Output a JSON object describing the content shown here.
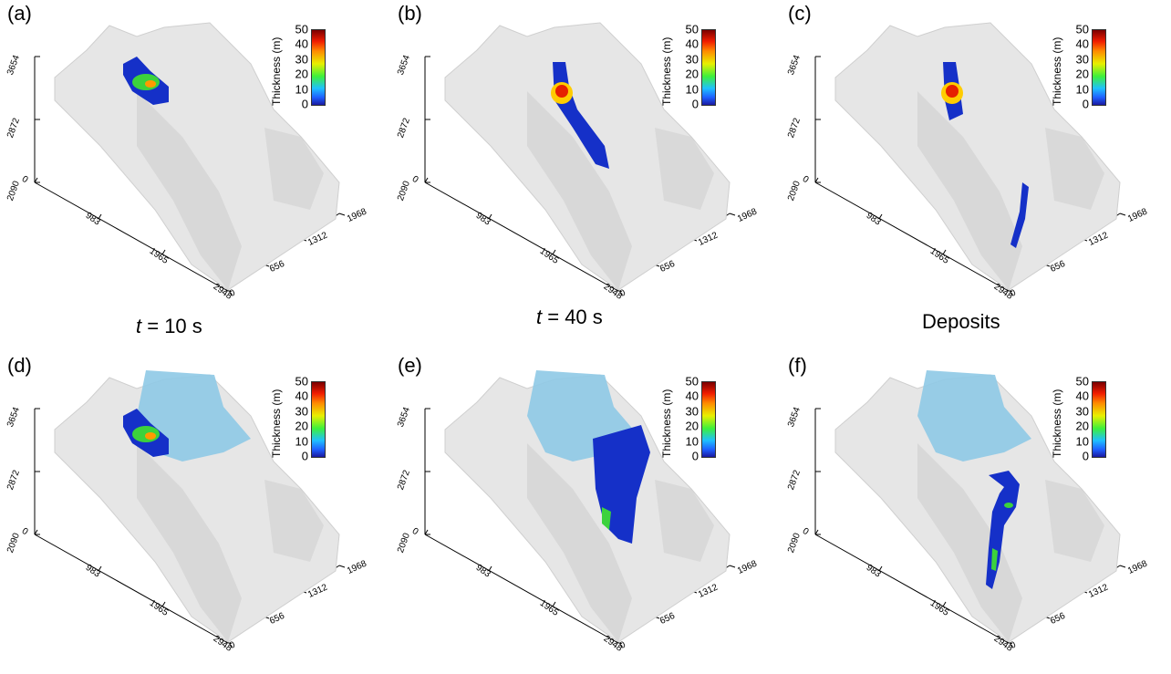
{
  "panels": [
    {
      "label": "(a)",
      "lake": false,
      "flow": "start"
    },
    {
      "label": "(b)",
      "lake": false,
      "flow": "mid"
    },
    {
      "label": "(c)",
      "lake": false,
      "flow": "deposit"
    },
    {
      "label": "(d)",
      "lake": true,
      "flow": "start"
    },
    {
      "label": "(e)",
      "lake": true,
      "flow": "mid_lake"
    },
    {
      "label": "(f)",
      "lake": true,
      "flow": "deposit_lake"
    }
  ],
  "colorbar": {
    "title": "Thickness (m)",
    "ticks": [
      "50",
      "40",
      "30",
      "20",
      "10",
      "0"
    ]
  },
  "axes": {
    "z_ticks": [
      "3654",
      "2872",
      "2090"
    ],
    "x_ticks": [
      "0",
      "983",
      "1965",
      "2948"
    ],
    "y_ticks": [
      "0",
      "656",
      "1312",
      "1968"
    ]
  },
  "captions": {
    "c1_var": "t",
    "c1_rest": " = 10 s",
    "c2_var": "t",
    "c2_rest": " = 40 s",
    "c3": "Deposits"
  },
  "colors": {
    "terrain": "#e6e6e6",
    "terrain_shade": "#c8c8c8",
    "lake": "#8ec9e6",
    "flow_blue": "#1530c8"
  }
}
